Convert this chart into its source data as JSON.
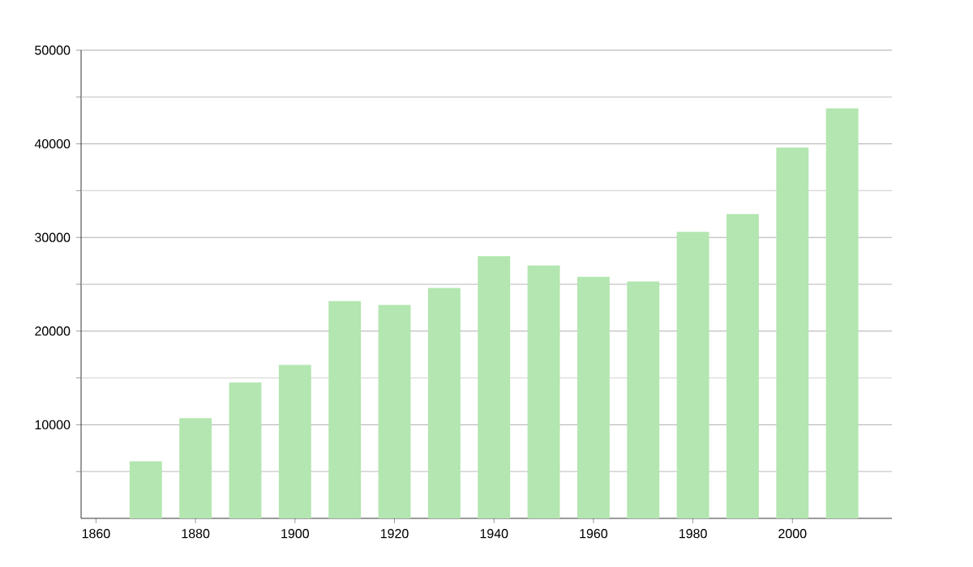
{
  "chart_data": {
    "type": "bar",
    "x": [
      1870,
      1880,
      1890,
      1900,
      1910,
      1920,
      1930,
      1940,
      1950,
      1960,
      1970,
      1980,
      1990,
      2000,
      2010
    ],
    "values": [
      6100,
      10700,
      14500,
      16400,
      23200,
      22800,
      24600,
      28000,
      27000,
      25800,
      25300,
      30600,
      32500,
      39600,
      43800
    ],
    "color": "#b3e6b0",
    "xlim": [
      1857,
      2020
    ],
    "xticks": [
      1860,
      1880,
      1900,
      1920,
      1940,
      1960,
      1980,
      2000
    ],
    "ylim": [
      0,
      50000
    ],
    "yticks": [
      {
        "value": 5000,
        "label": null
      },
      10000,
      {
        "value": 15000,
        "label": null
      },
      20000,
      {
        "value": 25000,
        "label": null
      },
      30000,
      {
        "value": 35000,
        "label": null
      },
      40000,
      {
        "value": 45000,
        "label": null
      },
      50000
    ],
    "grid": "y"
  }
}
